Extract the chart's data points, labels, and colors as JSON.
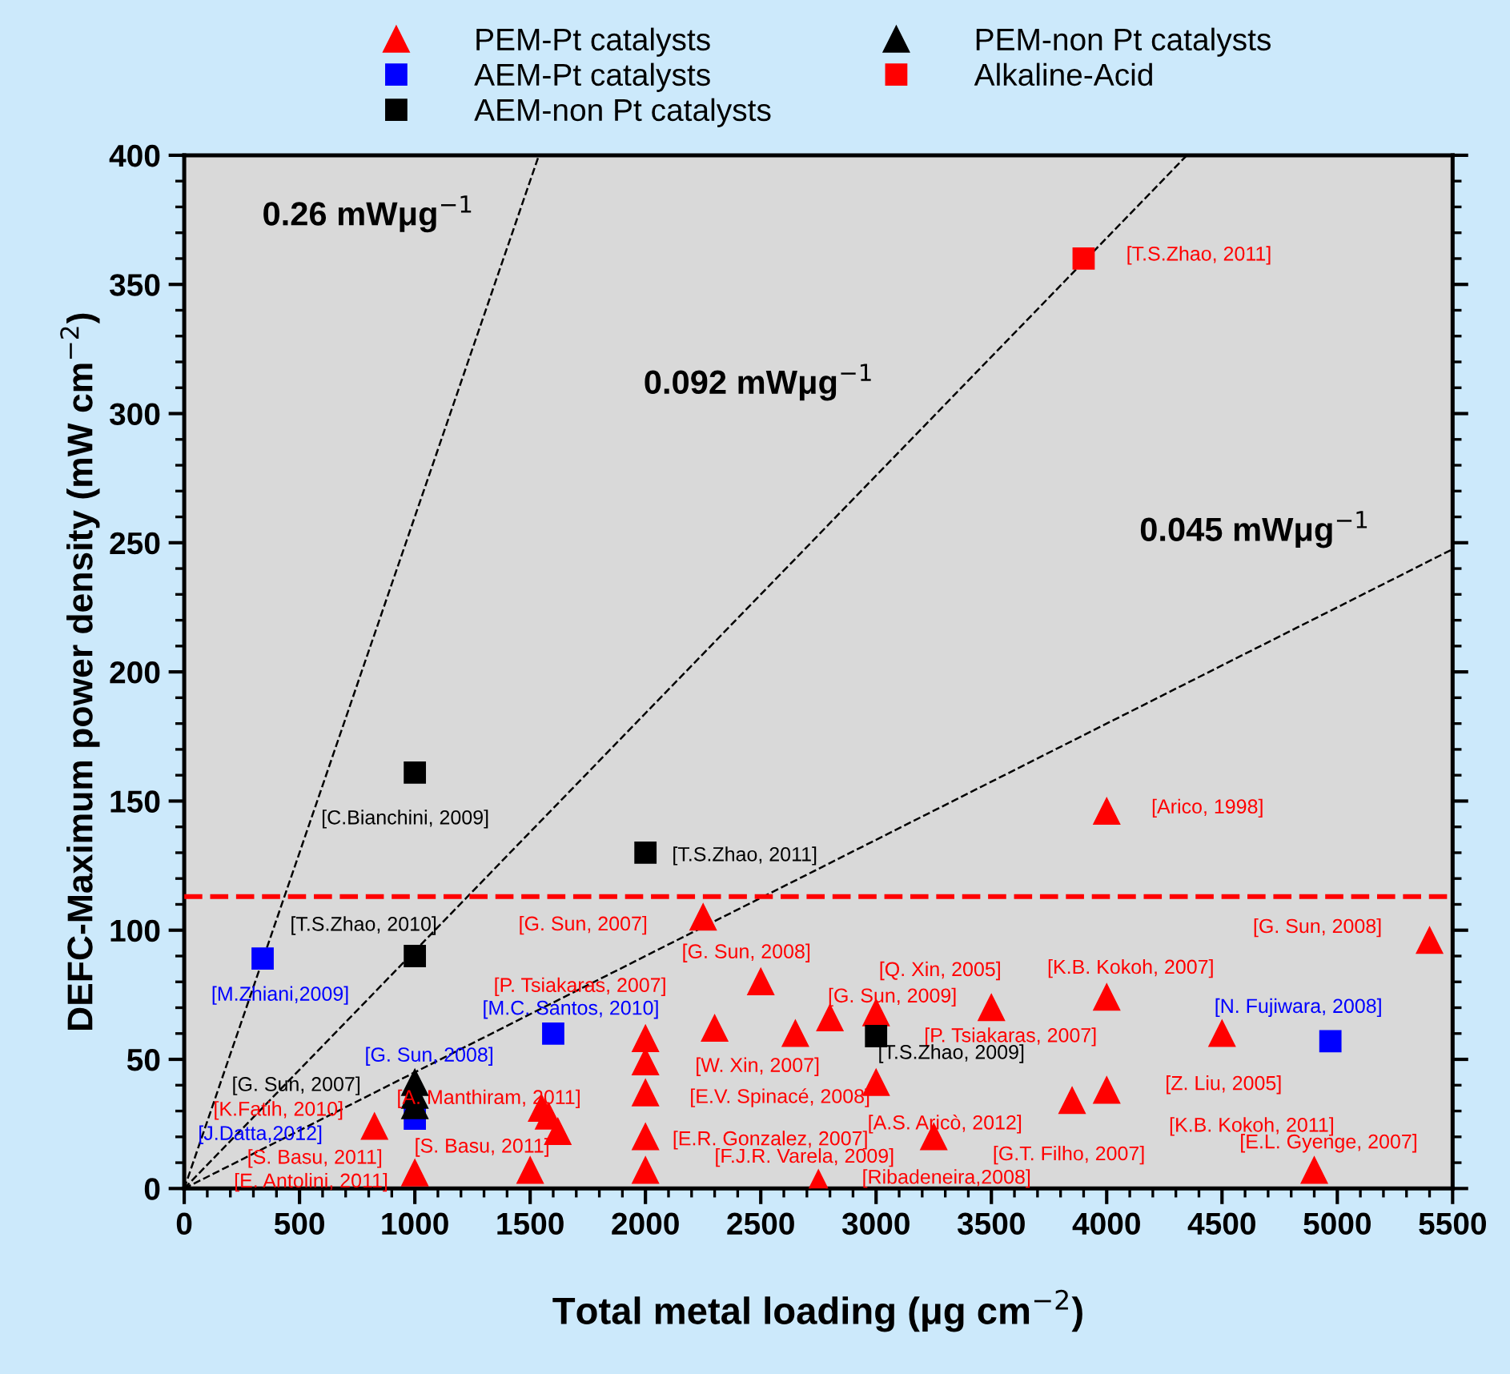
{
  "chart_data": {
    "type": "scatter",
    "xlabel": "Total metal loading (μg cm$^{−2}$)",
    "ylabel": "DEFC-Maximum power density (mW cm$^{−2}$)",
    "xlim": [
      0,
      5500
    ],
    "ylim": [
      0,
      400
    ],
    "xticks": [
      0,
      500,
      1000,
      1500,
      2000,
      2500,
      3000,
      3500,
      4000,
      4500,
      5000,
      5500
    ],
    "yticks": [
      0,
      50,
      100,
      150,
      200,
      250,
      300,
      350,
      400
    ],
    "grid": false,
    "legend": "top",
    "series": [
      {
        "name": "PEM-Pt catalysts",
        "color": "#ff0000",
        "marker": "triangle",
        "x": [
          4000,
          2250,
          2500,
          5400,
          4000,
          3500,
          2300,
          2650,
          2800,
          3000,
          2000,
          2000,
          2000,
          2000,
          2000,
          4500,
          3000,
          3850,
          4000,
          3250,
          4900,
          2750,
          1550,
          1580,
          1620,
          1500,
          825,
          1000
        ],
        "values": [
          146,
          105,
          80,
          96,
          74,
          70,
          62,
          60,
          66,
          68,
          58,
          49,
          37,
          20,
          7,
          60,
          41,
          34,
          38,
          20,
          7,
          2,
          31,
          28,
          22,
          7,
          24,
          6
        ]
      },
      {
        "name": "AEM-Pt catalysts",
        "color": "#0000ff",
        "marker": "square",
        "x": [
          340,
          1600,
          4970,
          1000
        ],
        "values": [
          89,
          60,
          57,
          27
        ]
      },
      {
        "name": "AEM-non Pt catalysts",
        "color": "#000000",
        "marker": "square",
        "x": [
          1000,
          2000,
          1000,
          3000
        ],
        "values": [
          161,
          130,
          90,
          59
        ]
      },
      {
        "name": "PEM-non Pt catalysts",
        "color": "#000000",
        "marker": "triangle",
        "x": [
          1000,
          1000,
          1000
        ],
        "values": [
          41,
          36,
          32
        ]
      },
      {
        "name": "Alkaline-Acid",
        "color": "#ff0000",
        "marker": "square",
        "x": [
          3900
        ],
        "values": [
          360
        ]
      },
      {
        "type": "line",
        "color": "#000000",
        "line_style": "dashed",
        "x": [
          0,
          1538
        ],
        "values": [
          0,
          400
        ]
      },
      {
        "type": "line",
        "color": "#000000",
        "line_style": "dashed",
        "x": [
          0,
          4348
        ],
        "values": [
          0,
          400
        ]
      },
      {
        "type": "line",
        "color": "#000000",
        "line_style": "dashed",
        "x": [
          0,
          5500
        ],
        "values": [
          0,
          247.5
        ]
      }
    ],
    "ref_lines": [
      {
        "axis": "y",
        "value": 113,
        "color": "#ff0000",
        "line_style": "dashed"
      }
    ],
    "annotations": [
      "0.26 mWμg$^{−1}$",
      "0.092 mWμg$^{−1}$",
      "0.045 mWμg$^{−1}$",
      {
        "text": "[Arico, 1998]",
        "x": 4000,
        "y": 146
      },
      {
        "text": "[T.S.Zhao, 2011]",
        "x": 3900,
        "y": 360
      },
      {
        "text": "[C.Bianchini, 2009]",
        "x": 1000,
        "y": 161
      },
      {
        "text": "[T.S.Zhao, 2011]",
        "x": 2000,
        "y": 130
      },
      {
        "text": "[T.S.Zhao, 2010]",
        "x": 1000,
        "y": 90
      },
      {
        "text": "[G. Sun, 2007]",
        "x": 2250,
        "y": 105
      },
      {
        "text": "[G. Sun, 2008]",
        "x": 2500,
        "y": 80
      },
      {
        "text": "[G. Sun, 2008]",
        "x": 5400,
        "y": 96
      },
      {
        "text": "[Q. Xin, 2005]",
        "x": 3500,
        "y": 70
      },
      {
        "text": "[K.B. Kokoh, 2007]",
        "x": 4000,
        "y": 74
      },
      {
        "text": "[N. Fujiwara, 2008]",
        "x": 4970,
        "y": 57
      },
      {
        "text": "[G. Sun, 2009]",
        "x": 2800,
        "y": 66
      },
      {
        "text": "[M.Zhiani,2009]",
        "x": 340,
        "y": 89
      },
      {
        "text": "[P. Tsiakaras, 2007]",
        "x": 2300,
        "y": 62
      },
      {
        "text": "[M.C. Santos, 2010]",
        "x": 1600,
        "y": 60
      },
      {
        "text": "[P. Tsiakaras, 2007]",
        "x": 3000,
        "y": 68
      },
      {
        "text": "[T.S.Zhao, 2009]",
        "x": 3000,
        "y": 59
      },
      {
        "text": "[G. Sun, 2008]",
        "x": 1000,
        "y": 27
      },
      {
        "text": "[W. Xin, 2007]",
        "x": 2000,
        "y": 49
      },
      {
        "text": "[Z. Liu, 2005]",
        "x": 4500,
        "y": 60
      },
      {
        "text": "[G. Sun, 2007]",
        "x": 1000,
        "y": 41
      },
      {
        "text": "[A. Manthiram, 2011]",
        "x": 1550,
        "y": 31
      },
      {
        "text": "[E.V. Spinacé, 2008]",
        "x": 2000,
        "y": 37
      },
      {
        "text": "[K.Fatih, 2010]",
        "x": 825,
        "y": 24
      },
      "[J.Datta,2012]",
      {
        "text": "[S. Basu, 2011]",
        "x": 1000,
        "y": 6
      },
      {
        "text": "[A.S. Aricò, 2012]",
        "x": 3250,
        "y": 20
      },
      "[K.B. Kokoh, 2011]",
      {
        "text": "[E.R. Gonzalez, 2007]",
        "x": 2000,
        "y": 20
      },
      "[S. Basu, 2011]",
      {
        "text": "[G.T. Filho, 2007]",
        "x": 3850,
        "y": 34
      },
      {
        "text": "[E.L. Gyenge, 2007]",
        "x": 4900,
        "y": 7
      },
      "[F.J.R. Varela, 2009]",
      "[E. Antolini, 2011]",
      {
        "text": "[Ribadeneira,2008]",
        "x": 2750,
        "y": 2
      }
    ]
  }
}
